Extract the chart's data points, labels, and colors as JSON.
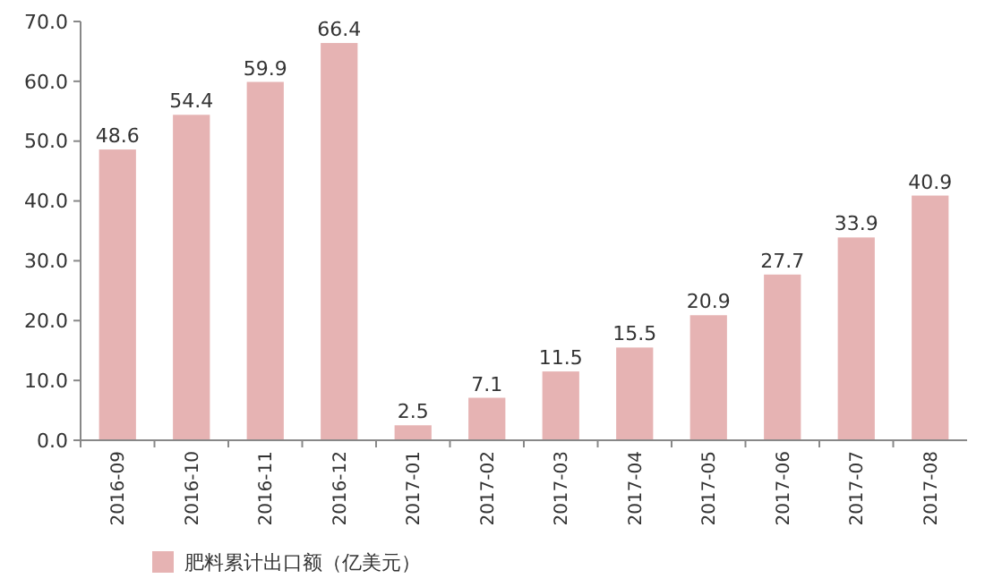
{
  "chart_data": {
    "type": "bar",
    "categories": [
      "2016-09",
      "2016-10",
      "2016-11",
      "2016-12",
      "2017-01",
      "2017-02",
      "2017-03",
      "2017-04",
      "2017-05",
      "2017-06",
      "2017-07",
      "2017-08"
    ],
    "series": [
      {
        "name": "肥料累计出口额（亿美元）",
        "color": "#e6b3b3",
        "values": [
          48.6,
          54.4,
          59.9,
          66.4,
          2.5,
          7.1,
          11.5,
          15.5,
          20.9,
          27.7,
          33.9,
          40.9
        ]
      }
    ],
    "ylim": [
      0,
      70
    ],
    "yticks": [
      {
        "value": 0,
        "label": "0.0"
      },
      {
        "value": 10,
        "label": "10.0"
      },
      {
        "value": 20,
        "label": "20.0"
      },
      {
        "value": 30,
        "label": "30.0"
      },
      {
        "value": 40,
        "label": "40.0"
      },
      {
        "value": 50,
        "label": "50.0"
      },
      {
        "value": 60,
        "label": "60.0"
      },
      {
        "value": 70,
        "label": "70.0"
      }
    ],
    "data_labels": true,
    "legend": "bottom"
  }
}
